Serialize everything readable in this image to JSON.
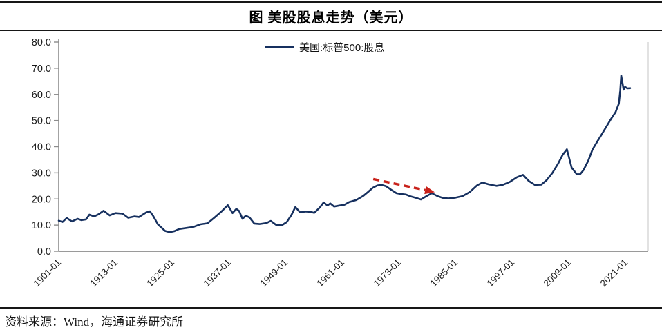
{
  "figure": {
    "title": "图 美股股息走势（美元）",
    "legend": "美国:标普500:股息",
    "source": "资料来源：Wind，海通证券研究所",
    "colors": {
      "line": "#16305f",
      "arrow": "#c8211a",
      "axis": "#8c8c8c",
      "plot_right_border": "#d9d9d9",
      "tick_text": "#1a1a1a"
    }
  },
  "chart_data": {
    "type": "line",
    "title": "图 美股股息走势（美元）",
    "xlabel": "",
    "ylabel": "",
    "xlim": [
      1901,
      2022
    ],
    "ylim": [
      0,
      80
    ],
    "grid": false,
    "legend_position": "top-center",
    "x_tick_years": [
      1901,
      1913,
      1925,
      1937,
      1949,
      1961,
      1973,
      1985,
      1997,
      2009,
      2021
    ],
    "x_ticks": [
      "1901-01",
      "1913-01",
      "1925-01",
      "1937-01",
      "1949-01",
      "1961-01",
      "1973-01",
      "1985-01",
      "1997-01",
      "2009-01",
      "2021-01"
    ],
    "y_tick_values": [
      0,
      10,
      20,
      30,
      40,
      50,
      60,
      70,
      80
    ],
    "y_ticks": [
      "0.0",
      "10.0",
      "20.0",
      "30.0",
      "40.0",
      "50.0",
      "60.0",
      "70.0",
      "80.0"
    ],
    "series": [
      {
        "name": "美国:标普500:股息",
        "color": "#16305f",
        "points": [
          [
            1901,
            11.7
          ],
          [
            1901.8,
            11.2
          ],
          [
            1902.7,
            12.7
          ],
          [
            1903.8,
            11.4
          ],
          [
            1905,
            12.4
          ],
          [
            1905.8,
            11.9
          ],
          [
            1906.8,
            12.2
          ],
          [
            1907.5,
            14
          ],
          [
            1908.5,
            13.3
          ],
          [
            1909.5,
            14.2
          ],
          [
            1910.5,
            15.5
          ],
          [
            1911.8,
            13.7
          ],
          [
            1913,
            14.6
          ],
          [
            1914.5,
            14.4
          ],
          [
            1915.7,
            12.8
          ],
          [
            1917,
            13.3
          ],
          [
            1918,
            13.1
          ],
          [
            1919.5,
            14.8
          ],
          [
            1920.3,
            15.3
          ],
          [
            1921,
            13.5
          ],
          [
            1922,
            10.3
          ],
          [
            1923.5,
            7.8
          ],
          [
            1924.5,
            7.3
          ],
          [
            1925.5,
            7.7
          ],
          [
            1926.5,
            8.5
          ],
          [
            1928,
            8.9
          ],
          [
            1929.5,
            9.3
          ],
          [
            1931,
            10.3
          ],
          [
            1932.5,
            10.7
          ],
          [
            1934,
            12.9
          ],
          [
            1935.5,
            15.3
          ],
          [
            1936.8,
            17.6
          ],
          [
            1937.8,
            14.6
          ],
          [
            1938.6,
            16.2
          ],
          [
            1939.2,
            15.4
          ],
          [
            1939.9,
            12.4
          ],
          [
            1940.6,
            13.6
          ],
          [
            1941.4,
            12.9
          ],
          [
            1942.4,
            10.6
          ],
          [
            1943.5,
            10.4
          ],
          [
            1945,
            10.8
          ],
          [
            1945.9,
            11.6
          ],
          [
            1947,
            10.1
          ],
          [
            1948.2,
            9.9
          ],
          [
            1949.3,
            11.2
          ],
          [
            1950.3,
            14
          ],
          [
            1951.1,
            16.9
          ],
          [
            1952.1,
            14.9
          ],
          [
            1953.3,
            15.2
          ],
          [
            1954.2,
            15.1
          ],
          [
            1955.1,
            14.7
          ],
          [
            1956.3,
            16.8
          ],
          [
            1957.1,
            18.7
          ],
          [
            1957.9,
            17.5
          ],
          [
            1958.5,
            18.3
          ],
          [
            1959.3,
            17.1
          ],
          [
            1960.5,
            17.5
          ],
          [
            1961.5,
            17.8
          ],
          [
            1962.5,
            18.8
          ],
          [
            1964,
            19.6
          ],
          [
            1965.5,
            21.2
          ],
          [
            1966.5,
            22.7
          ],
          [
            1967.5,
            24.3
          ],
          [
            1968.5,
            25.2
          ],
          [
            1969.3,
            25.4
          ],
          [
            1970.3,
            24.9
          ],
          [
            1971.5,
            23.4
          ],
          [
            1972.5,
            22.2
          ],
          [
            1973.5,
            21.9
          ],
          [
            1974.5,
            21.7
          ],
          [
            1975.5,
            21
          ],
          [
            1976.5,
            20.5
          ],
          [
            1977.7,
            19.8
          ],
          [
            1978.7,
            20.9
          ],
          [
            1980,
            22.2
          ],
          [
            1981.2,
            21.1
          ],
          [
            1982.3,
            20.4
          ],
          [
            1983.5,
            20.2
          ],
          [
            1985,
            20.5
          ],
          [
            1986.5,
            21.1
          ],
          [
            1988,
            22.6
          ],
          [
            1989.5,
            25.1
          ],
          [
            1990.7,
            26.3
          ],
          [
            1992,
            25.6
          ],
          [
            1993.7,
            25
          ],
          [
            1995,
            25.4
          ],
          [
            1996.5,
            26.5
          ],
          [
            1998,
            28.3
          ],
          [
            1999.3,
            29.2
          ],
          [
            2000.5,
            26.9
          ],
          [
            2001.8,
            25.4
          ],
          [
            2003.2,
            25.5
          ],
          [
            2004.3,
            27.2
          ],
          [
            2005.5,
            29.9
          ],
          [
            2006.7,
            33.4
          ],
          [
            2007.7,
            36.9
          ],
          [
            2008.6,
            39
          ],
          [
            2009.6,
            32
          ],
          [
            2010.7,
            29.4
          ],
          [
            2011.4,
            29.5
          ],
          [
            2012.1,
            31
          ],
          [
            2013.1,
            34.6
          ],
          [
            2014,
            38.8
          ],
          [
            2015,
            41.9
          ],
          [
            2016,
            44.8
          ],
          [
            2017,
            47.8
          ],
          [
            2018,
            50.8
          ],
          [
            2018.9,
            53.2
          ],
          [
            2019.6,
            56.5
          ],
          [
            2019.9,
            61.5
          ],
          [
            2020.1,
            67.2
          ],
          [
            2020.4,
            64
          ],
          [
            2020.6,
            61.8
          ],
          [
            2020.9,
            62.9
          ],
          [
            2021.4,
            62.3
          ],
          [
            2022,
            62.4
          ]
        ]
      }
    ],
    "annotation_arrow": {
      "style": "dashed",
      "color": "#c8211a",
      "from": [
        1967.6,
        27.6
      ],
      "to": [
        1980.6,
        22.6
      ]
    }
  }
}
